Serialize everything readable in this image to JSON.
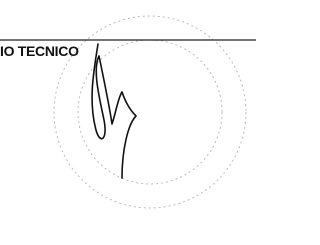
{
  "caption": "IO TECNICO"
}
